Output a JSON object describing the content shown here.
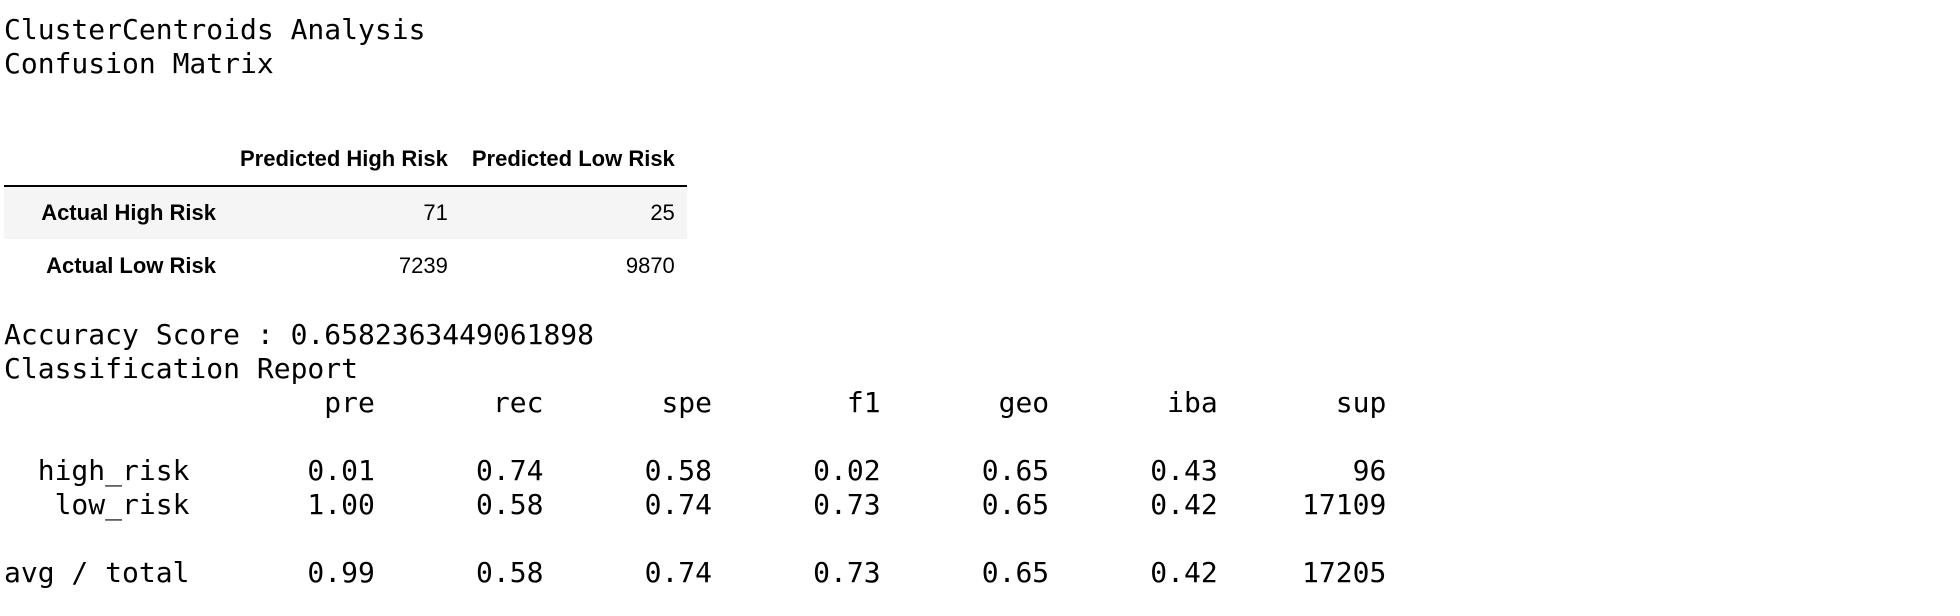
{
  "header": {
    "analysis_title": "ClusterCentroids Analysis",
    "confusion_title": "Confusion Matrix"
  },
  "confusion_matrix": {
    "columns": [
      "Predicted High Risk",
      "Predicted Low Risk"
    ],
    "rows": [
      {
        "label": "Actual High Risk",
        "values": [
          "71",
          "25"
        ]
      },
      {
        "label": "Actual Low Risk",
        "values": [
          "7239",
          "9870"
        ]
      }
    ]
  },
  "accuracy": {
    "line": "Accuracy Score : 0.6582363449061898"
  },
  "report": {
    "title": "Classification Report",
    "lines": [
      "                   pre       rec       spe        f1       geo       iba       sup",
      "",
      "  high_risk       0.01      0.74      0.58      0.02      0.65      0.43        96",
      "   low_risk       1.00      0.58      0.74      0.73      0.65      0.42     17109",
      "",
      "avg / total       0.99      0.58      0.74      0.73      0.65      0.42     17205"
    ]
  }
}
